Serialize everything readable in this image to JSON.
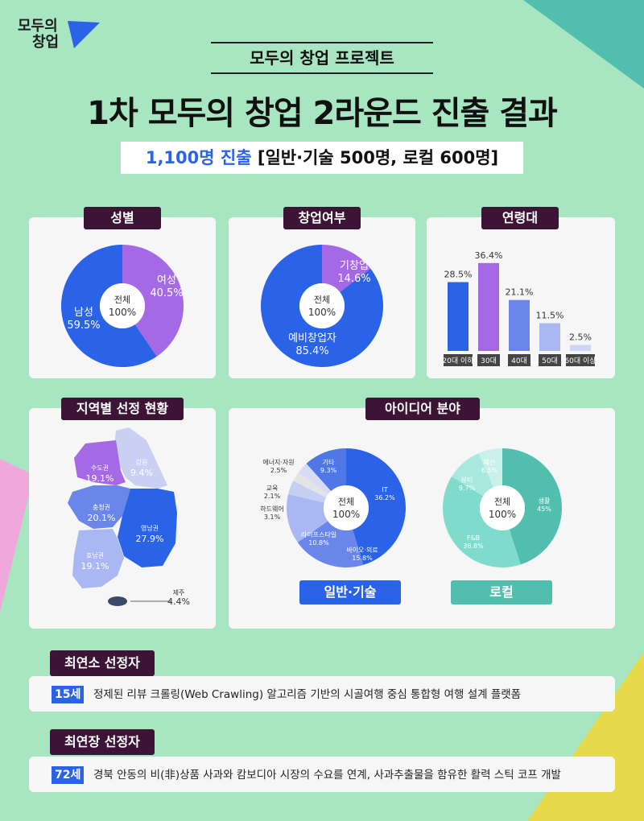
{
  "logo": {
    "line1": "모두의",
    "line2": "창업"
  },
  "header": {
    "project_label": "모두의 창업 프로젝트",
    "title": "1차 모두의 창업 2라운드 진출 결과",
    "summary_highlight": "1,100명 진출",
    "summary_rest": "[일반·기술 500명, 로컬 600명]"
  },
  "colors": {
    "background": "#a8e6c1",
    "label_tag": "#3b1436",
    "blue": "#2a62e8",
    "purple": "#a569e6",
    "teal": "#52bfae",
    "yellow": "#e6d94a",
    "pink": "#f0a7dc"
  },
  "center_label": {
    "line1": "전체",
    "line2": "100%"
  },
  "chart_data": [
    {
      "id": "gender",
      "type": "pie",
      "title": "성별",
      "categories": [
        "여성",
        "남성"
      ],
      "values": [
        40.5,
        59.5
      ],
      "labels": [
        "40.5%",
        "59.5%"
      ],
      "colors": [
        "#a569e6",
        "#2a62e8"
      ]
    },
    {
      "id": "startup_status",
      "type": "pie",
      "title": "창업여부",
      "categories": [
        "기창업",
        "예비창업자"
      ],
      "values": [
        14.6,
        85.4
      ],
      "labels": [
        "14.6%",
        "85.4%"
      ],
      "colors": [
        "#a569e6",
        "#2a62e8"
      ]
    },
    {
      "id": "age",
      "type": "bar",
      "title": "연령대",
      "categories": [
        "20대 이하",
        "30대",
        "40대",
        "50대",
        "60대 이상"
      ],
      "values": [
        28.5,
        36.4,
        21.1,
        11.5,
        2.5
      ],
      "labels": [
        "28.5%",
        "36.4%",
        "21.1%",
        "11.5%",
        "2.5%"
      ],
      "colors": [
        "#2a62e8",
        "#a569e6",
        "#6a86ea",
        "#a9b8f2",
        "#cdd6f7"
      ]
    },
    {
      "id": "region",
      "type": "map",
      "title": "지역별 선정 현황",
      "categories": [
        "수도권",
        "강원",
        "충청권",
        "영남권",
        "호남권",
        "제주"
      ],
      "values": [
        19.1,
        9.4,
        20.1,
        27.9,
        19.1,
        4.4
      ],
      "labels": [
        "19.1%",
        "9.4%",
        "20.1%",
        "27.9%",
        "19.1%",
        "4.4%"
      ],
      "colors": [
        "#a569e6",
        "#c9d0f3",
        "#6a86ea",
        "#2a62e8",
        "#a9b8f2",
        "#3b4a6b"
      ]
    },
    {
      "id": "idea_general",
      "type": "pie",
      "title": "아이디어 분야",
      "group": "일반·기술",
      "categories": [
        "IT",
        "바이오·의료",
        "라이프스타일",
        "하드웨어",
        "교육",
        "에너지·자원",
        "기타"
      ],
      "values": [
        36.2,
        15.8,
        10.8,
        3.1,
        2.1,
        2.5,
        9.3
      ],
      "labels": [
        "36.2%",
        "15.8%",
        "10.8%",
        "3.1%",
        "2.1%",
        "2.5%",
        "9.3%"
      ],
      "colors": [
        "#2a62e8",
        "#6a86ea",
        "#a9b8f2",
        "#c5cff3",
        "#e4e4e4",
        "#d7dcf4",
        "#4f77e6"
      ]
    },
    {
      "id": "idea_local",
      "type": "pie",
      "group": "로컬",
      "categories": [
        "생활",
        "F&B",
        "뷰티",
        "패션"
      ],
      "values": [
        45,
        38.8,
        9.7,
        6.5
      ],
      "labels": [
        "45%",
        "38.8%",
        "9.7%",
        "6.5%"
      ],
      "colors": [
        "#52bfae",
        "#7fdccd",
        "#a9e8de",
        "#c9f0ea"
      ]
    }
  ],
  "field_buttons": {
    "general": "일반·기술",
    "local": "로컬"
  },
  "youngest": {
    "label": "최연소 선정자",
    "age": "15세",
    "text": "정제된 리뷰 크롤링(Web Crawling) 알고리즘 기반의 시골여행 중심 통합형 여행 설계 플랫폼"
  },
  "oldest": {
    "label": "최연장 선정자",
    "age": "72세",
    "text": "경북 안동의 비(非)상품 사과와 캄보디아 시장의 수요를 연계, 사과추출물을 함유한 활력 스틱 코프 개발"
  }
}
